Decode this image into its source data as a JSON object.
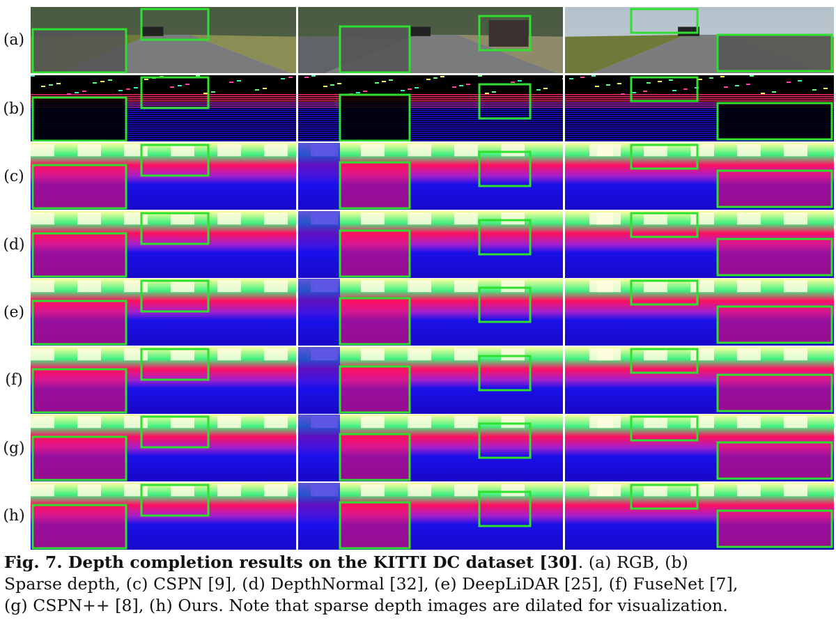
{
  "rows": [
    {
      "label": "(a)",
      "kind": "rgb"
    },
    {
      "label": "(b)",
      "kind": "sparse"
    },
    {
      "label": "(c)",
      "kind": "dense"
    },
    {
      "label": "(d)",
      "kind": "dense"
    },
    {
      "label": "(e)",
      "kind": "dense"
    },
    {
      "label": "(f)",
      "kind": "dense"
    },
    {
      "label": "(g)",
      "kind": "dense"
    },
    {
      "label": "(h)",
      "kind": "dense"
    }
  ],
  "colors": {
    "inset_border": "#2fe02f",
    "depth_near": "#1a10e8",
    "depth_mid": "#ff1060",
    "depth_far": "#ffffa0",
    "depth_green": "#40f080"
  },
  "caption": {
    "bold": "Fig. 7. Depth completion results on the KITTI DC dataset [30]",
    "line1_rest": ". (a) RGB, (b)",
    "line2": "Sparse depth, (c) CSPN [9], (d) DepthNormal [32], (e) DeepLiDAR [25], (f) FuseNet [7],",
    "line3": "(g) CSPN++ [8], (h) Ours. Note that sparse depth images are dilated for visualization."
  }
}
